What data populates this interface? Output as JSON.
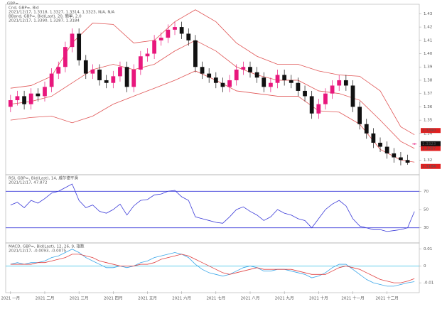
{
  "chart_data": [
    {
      "type": "candlestick",
      "title": "GBP=",
      "legend": [
        "Cnd, GBP=, Bid",
        "2021/12/17, 1.3318, 1.3327, 1.3314, 1.3323, N/A, N/A",
        "BBand, GBP=, Bid(Last), 20, 簡單, 2.0",
        "2021/12/17, 1.3390, 1.3287, 1.3184"
      ],
      "open": [
        1.36,
        1.365,
        1.368,
        1.362,
        1.37,
        1.368,
        1.375,
        1.385,
        1.39,
        1.405,
        1.415,
        1.395,
        1.385,
        1.388,
        1.38,
        1.378,
        1.383,
        1.39,
        1.375,
        1.388,
        1.398,
        1.4,
        1.41,
        1.412,
        1.418,
        1.42,
        1.415,
        1.41,
        1.39,
        1.385,
        1.382,
        1.378,
        1.375,
        1.38,
        1.388,
        1.39,
        1.386,
        1.382,
        1.375,
        1.378,
        1.384,
        1.38,
        1.378,
        1.372,
        1.368,
        1.355,
        1.362,
        1.37,
        1.376,
        1.38,
        1.376,
        1.36,
        1.347,
        1.34,
        1.333,
        1.33,
        1.325,
        1.322,
        1.32,
        1.3318
      ],
      "high": [
        1.369,
        1.372,
        1.372,
        1.374,
        1.374,
        1.379,
        1.389,
        1.394,
        1.409,
        1.419,
        1.419,
        1.399,
        1.392,
        1.392,
        1.384,
        1.387,
        1.394,
        1.394,
        1.392,
        1.402,
        1.404,
        1.414,
        1.416,
        1.422,
        1.424,
        1.424,
        1.419,
        1.414,
        1.394,
        1.389,
        1.386,
        1.382,
        1.384,
        1.392,
        1.394,
        1.394,
        1.39,
        1.386,
        1.382,
        1.388,
        1.388,
        1.384,
        1.382,
        1.376,
        1.372,
        1.366,
        1.374,
        1.38,
        1.384,
        1.384,
        1.38,
        1.364,
        1.351,
        1.344,
        1.337,
        1.334,
        1.329,
        1.326,
        1.324,
        1.3327
      ],
      "low": [
        1.356,
        1.361,
        1.358,
        1.358,
        1.364,
        1.364,
        1.371,
        1.381,
        1.386,
        1.401,
        1.391,
        1.381,
        1.381,
        1.376,
        1.374,
        1.374,
        1.379,
        1.371,
        1.371,
        1.384,
        1.394,
        1.396,
        1.406,
        1.408,
        1.414,
        1.411,
        1.406,
        1.386,
        1.381,
        1.378,
        1.374,
        1.371,
        1.371,
        1.376,
        1.384,
        1.382,
        1.378,
        1.371,
        1.371,
        1.374,
        1.376,
        1.374,
        1.368,
        1.364,
        1.351,
        1.351,
        1.358,
        1.366,
        1.372,
        1.372,
        1.356,
        1.343,
        1.336,
        1.329,
        1.326,
        1.321,
        1.318,
        1.316,
        1.3165,
        1.3314
      ],
      "close": [
        1.365,
        1.368,
        1.362,
        1.37,
        1.368,
        1.375,
        1.385,
        1.39,
        1.405,
        1.415,
        1.395,
        1.385,
        1.388,
        1.38,
        1.378,
        1.383,
        1.39,
        1.375,
        1.388,
        1.398,
        1.4,
        1.41,
        1.412,
        1.418,
        1.42,
        1.415,
        1.41,
        1.39,
        1.385,
        1.382,
        1.378,
        1.375,
        1.38,
        1.388,
        1.39,
        1.386,
        1.382,
        1.375,
        1.378,
        1.384,
        1.38,
        1.378,
        1.372,
        1.368,
        1.355,
        1.362,
        1.37,
        1.376,
        1.38,
        1.376,
        1.36,
        1.347,
        1.34,
        1.333,
        1.33,
        1.325,
        1.322,
        1.32,
        1.318,
        1.3323
      ],
      "up_color": "#e8177d",
      "down_color": "#111111",
      "ylim": [
        1.31,
        1.435
      ],
      "yticks": [
        1.32,
        1.33,
        1.34,
        1.35,
        1.36,
        1.37,
        1.38,
        1.39,
        {
          "value": 1.4,
          "label": "1.40"
        },
        1.41,
        1.42,
        1.43
      ],
      "bands": [
        {
          "x": [
            0,
            3,
            6,
            9,
            12,
            15,
            18,
            21,
            24,
            27,
            30,
            33,
            36,
            39,
            42,
            45,
            48,
            51,
            54,
            57,
            59
          ],
          "values": [
            1.374,
            1.376,
            1.383,
            1.408,
            1.423,
            1.422,
            1.408,
            1.41,
            1.424,
            1.433,
            1.424,
            1.408,
            1.398,
            1.392,
            1.392,
            1.387,
            1.384,
            1.383,
            1.372,
            1.345,
            1.339
          ],
          "color": "#e05555",
          "last_label": "1.3390"
        },
        {
          "x": [
            0,
            3,
            6,
            9,
            12,
            15,
            18,
            21,
            24,
            27,
            30,
            33,
            36,
            39,
            42,
            45,
            48,
            51,
            54,
            57,
            59
          ],
          "values": [
            1.362,
            1.364,
            1.368,
            1.378,
            1.388,
            1.392,
            1.388,
            1.392,
            1.402,
            1.41,
            1.402,
            1.39,
            1.384,
            1.38,
            1.38,
            1.372,
            1.37,
            1.365,
            1.35,
            1.334,
            1.3287
          ],
          "color": "#e05555",
          "last_label": "1.3287"
        },
        {
          "x": [
            0,
            3,
            6,
            9,
            12,
            15,
            18,
            21,
            24,
            27,
            30,
            33,
            36,
            39,
            42,
            45,
            48,
            51,
            54,
            57,
            59
          ],
          "values": [
            1.35,
            1.352,
            1.353,
            1.348,
            1.353,
            1.362,
            1.368,
            1.374,
            1.38,
            1.387,
            1.38,
            1.372,
            1.37,
            1.368,
            1.368,
            1.357,
            1.356,
            1.347,
            1.328,
            1.32,
            1.3184
          ],
          "color": "#e05555",
          "last_label": "1.3184"
        }
      ]
    },
    {
      "type": "line",
      "legend": [
        "RSI, GBP=, Bid(Last), 14, 威尔德平滑",
        "2021/12/17, 47.872"
      ],
      "ylim": [
        15,
        85
      ],
      "yticks": [
        30,
        50,
        70
      ],
      "levels": [
        30,
        70
      ],
      "level_color": "#3a3ad8",
      "series": [
        {
          "color": "#3a3ad8",
          "values": [
            55,
            58,
            52,
            60,
            57,
            62,
            68,
            70,
            74,
            78,
            60,
            52,
            55,
            48,
            46,
            50,
            56,
            44,
            54,
            60,
            61,
            66,
            67,
            70,
            71,
            64,
            60,
            42,
            40,
            38,
            36,
            35,
            42,
            50,
            53,
            48,
            44,
            38,
            42,
            50,
            46,
            44,
            40,
            38,
            30,
            40,
            50,
            56,
            60,
            54,
            40,
            32,
            30,
            28,
            28,
            26,
            27,
            28,
            30,
            47.872
          ]
        }
      ]
    },
    {
      "type": "line",
      "legend": [
        "MACD, GBP=, Bid(Last), 12, 26, 9, 指数",
        "2021/12/17, -0.0093, -0.0075"
      ],
      "ylim": [
        -0.015,
        0.012
      ],
      "yticks": [
        -0.01,
        0,
        0.01
      ],
      "levels": [
        0
      ],
      "level_color": "#49c6e8",
      "categories": [
        "2021 一月",
        null,
        null,
        null,
        null,
        "2021 二月",
        null,
        null,
        null,
        null,
        "2021 三月",
        null,
        null,
        null,
        null,
        "2021 四月",
        null,
        null,
        null,
        null,
        "2021 五月",
        null,
        null,
        null,
        null,
        "2021 六月",
        null,
        null,
        null,
        null,
        "2021 七月",
        null,
        null,
        null,
        null,
        "2021 八月",
        null,
        null,
        null,
        null,
        "2021 九月",
        null,
        null,
        null,
        null,
        "2021 十月",
        null,
        null,
        null,
        null,
        "2021 十一月",
        null,
        null,
        null,
        null,
        "2021 十二月",
        null,
        null,
        null,
        null
      ],
      "series": [
        {
          "color": "#3aa6e8",
          "values": [
            0.001,
            0.002,
            0.001,
            0.002,
            0.002,
            0.003,
            0.005,
            0.006,
            0.008,
            0.01,
            0.008,
            0.005,
            0.003,
            0.001,
            -0.001,
            -0.001,
            0.0,
            -0.001,
            0.0,
            0.002,
            0.003,
            0.005,
            0.006,
            0.007,
            0.008,
            0.007,
            0.005,
            0.001,
            -0.002,
            -0.004,
            -0.005,
            -0.006,
            -0.005,
            -0.003,
            -0.001,
            0.0,
            -0.001,
            -0.003,
            -0.003,
            -0.002,
            -0.002,
            -0.003,
            -0.004,
            -0.005,
            -0.007,
            -0.006,
            -0.004,
            -0.001,
            0.001,
            0.001,
            -0.002,
            -0.005,
            -0.008,
            -0.01,
            -0.011,
            -0.012,
            -0.012,
            -0.011,
            -0.01,
            -0.0093
          ]
        },
        {
          "color": "#e04040",
          "values": [
            0.001,
            0.001,
            0.001,
            0.001,
            0.002,
            0.002,
            0.003,
            0.004,
            0.005,
            0.007,
            0.007,
            0.006,
            0.005,
            0.003,
            0.002,
            0.001,
            0.0,
            0.0,
            0.0,
            0.001,
            0.001,
            0.002,
            0.004,
            0.005,
            0.006,
            0.007,
            0.006,
            0.004,
            0.002,
            0.0,
            -0.002,
            -0.004,
            -0.005,
            -0.004,
            -0.003,
            -0.002,
            -0.001,
            -0.002,
            -0.002,
            -0.002,
            -0.002,
            -0.002,
            -0.003,
            -0.004,
            -0.005,
            -0.005,
            -0.005,
            -0.003,
            -0.001,
            0.0,
            -0.001,
            -0.002,
            -0.004,
            -0.006,
            -0.008,
            -0.009,
            -0.01,
            -0.01,
            -0.009,
            -0.0075
          ]
        }
      ]
    }
  ]
}
